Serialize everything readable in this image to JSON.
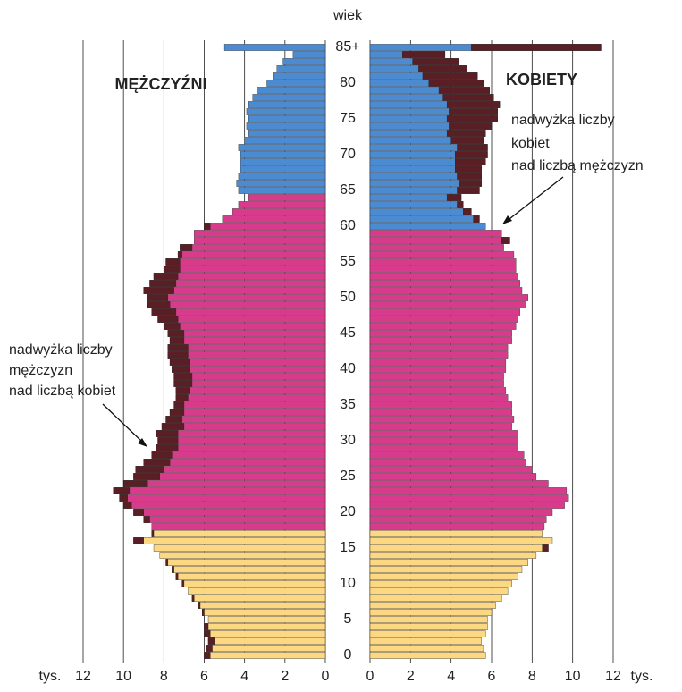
{
  "chart_data": {
    "type": "pyramid",
    "y_axis_label": "wiek",
    "x_unit": "tys.",
    "xlim": [
      0,
      12
    ],
    "xticks": [
      0,
      2,
      4,
      6,
      8,
      10,
      12
    ],
    "excess_color": "#5a1f24",
    "categories": [
      "0",
      null,
      null,
      null,
      null,
      "5",
      null,
      null,
      null,
      null,
      "10",
      null,
      null,
      null,
      null,
      "15",
      null,
      null,
      null,
      null,
      "20",
      null,
      null,
      null,
      null,
      "25",
      null,
      null,
      null,
      null,
      "30",
      null,
      null,
      null,
      null,
      "35",
      null,
      null,
      null,
      null,
      "40",
      null,
      null,
      null,
      null,
      "45",
      null,
      null,
      null,
      null,
      "50",
      null,
      null,
      null,
      null,
      "55",
      null,
      null,
      null,
      null,
      "60",
      null,
      null,
      null,
      null,
      "65",
      null,
      null,
      null,
      null,
      "70",
      null,
      null,
      null,
      null,
      "75",
      null,
      null,
      null,
      null,
      "80",
      null,
      null,
      null,
      null,
      "85+"
    ],
    "series": [
      {
        "name": "MĘŻCZYŹNI",
        "side": "left",
        "groups": [
          {
            "from": 0,
            "color": "#fdd882"
          },
          {
            "from": 18,
            "color": "#d93b8c"
          },
          {
            "from": 65,
            "color": "#4b8bd1"
          }
        ],
        "values": [
          6.0,
          5.9,
          5.8,
          6.0,
          6.0,
          5.8,
          6.1,
          6.3,
          6.6,
          6.8,
          7.1,
          7.4,
          7.6,
          7.9,
          8.2,
          8.5,
          9.5,
          8.6,
          8.6,
          9.0,
          9.5,
          10.0,
          10.2,
          10.5,
          10.0,
          9.5,
          9.4,
          9.0,
          8.6,
          8.4,
          8.3,
          8.4,
          8.1,
          7.9,
          7.7,
          7.5,
          7.4,
          7.4,
          7.5,
          7.5,
          7.6,
          7.7,
          7.8,
          7.8,
          7.7,
          7.8,
          8.0,
          8.3,
          8.6,
          8.8,
          8.8,
          9.0,
          8.7,
          8.5,
          8.0,
          7.9,
          7.3,
          7.2,
          6.5,
          6.5,
          6.0,
          5.1,
          4.6,
          4.3,
          3.8,
          4.3,
          4.4,
          4.3,
          4.2,
          4.2,
          4.2,
          4.3,
          4.0,
          3.8,
          3.9,
          3.8,
          3.9,
          3.8,
          3.6,
          3.4,
          2.9,
          2.6,
          2.4,
          2.1,
          1.6,
          5.0
        ]
      },
      {
        "name": "KOBIETY",
        "side": "right",
        "groups": [
          {
            "from": 0,
            "color": "#fdd882"
          },
          {
            "from": 18,
            "color": "#d93b8c"
          },
          {
            "from": 60,
            "color": "#4b8bd1"
          }
        ],
        "values": [
          5.7,
          5.6,
          5.5,
          5.7,
          5.8,
          5.8,
          6.0,
          6.2,
          6.5,
          6.8,
          7.0,
          7.3,
          7.5,
          7.8,
          8.2,
          8.8,
          9.0,
          8.5,
          8.6,
          8.7,
          9.0,
          9.6,
          9.8,
          9.7,
          8.8,
          8.2,
          8.0,
          7.7,
          7.6,
          7.3,
          7.3,
          7.3,
          7.0,
          7.1,
          7.0,
          7.0,
          6.8,
          6.7,
          6.6,
          6.6,
          6.7,
          6.7,
          6.8,
          6.8,
          7.0,
          7.0,
          7.2,
          7.3,
          7.4,
          7.7,
          7.8,
          7.5,
          7.4,
          7.3,
          7.2,
          7.2,
          7.1,
          6.6,
          6.9,
          6.5,
          5.7,
          5.4,
          5.0,
          4.6,
          4.5,
          5.4,
          5.5,
          5.5,
          5.5,
          5.7,
          5.8,
          5.8,
          5.6,
          5.7,
          6.0,
          6.3,
          6.3,
          6.4,
          6.1,
          5.9,
          5.6,
          5.3,
          4.8,
          4.4,
          3.7,
          11.4
        ]
      }
    ],
    "annotations": [
      {
        "lines": [
          "nadwyżka liczby",
          "kobiet",
          "nad liczbą mężczyzn"
        ]
      },
      {
        "lines": [
          "nadwyżka liczby",
          "mężczyzn",
          "nad liczbą kobiet"
        ]
      }
    ]
  }
}
